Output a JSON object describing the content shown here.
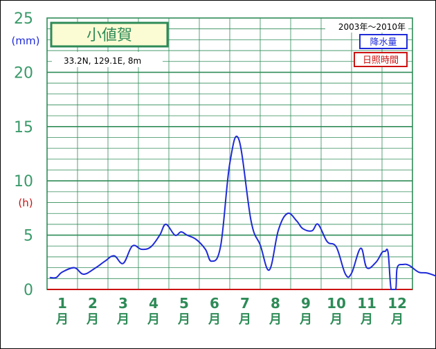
{
  "chart_data": {
    "type": "line",
    "title": "小値賀",
    "location": "33.2N,  129.1E,  8m",
    "period": "2003年〜2010年",
    "unit_rain": "(mm)",
    "unit_sun": "(h)",
    "legend": {
      "rain": "降水量",
      "sun": "日照時間"
    },
    "ylim": [
      0,
      25
    ],
    "yticks": [
      "0",
      "5",
      "10",
      "15",
      "20",
      "25"
    ],
    "months": [
      "1",
      "2",
      "3",
      "4",
      "5",
      "6",
      "7",
      "8",
      "9",
      "10",
      "11",
      "12"
    ],
    "month_suffix": "月",
    "colors": {
      "rain": "#1e2ad8",
      "sun": "#cc1111",
      "grid": "#2e8b57"
    },
    "series": [
      {
        "name": "降水量",
        "x": [
          0.1,
          0.3,
          0.5,
          0.9,
          1.2,
          1.6,
          1.9,
          2.2,
          2.5,
          2.8,
          3.1,
          3.4,
          3.7,
          3.9,
          4.2,
          4.4,
          4.6,
          4.9,
          5.2,
          5.4,
          5.7,
          6.0,
          6.3,
          6.7,
          7.0,
          7.3,
          7.6,
          7.9,
          8.2,
          8.4,
          8.7,
          8.9,
          9.2,
          9.5,
          9.8,
          10.0,
          10.3,
          10.5,
          10.8,
          11.0,
          11.1,
          11.2,
          11.3,
          11.45,
          11.5,
          11.7,
          11.9,
          12.2,
          12.5,
          12.9
        ],
        "y": [
          1.1,
          1.1,
          1.6,
          2.0,
          1.4,
          2.0,
          2.6,
          3.1,
          2.4,
          4.0,
          3.7,
          3.9,
          5.0,
          6.0,
          5.0,
          5.3,
          5.0,
          4.6,
          3.7,
          2.6,
          4.0,
          11.6,
          13.8,
          6.3,
          4.1,
          1.8,
          5.5,
          7.0,
          6.3,
          5.6,
          5.4,
          6.0,
          4.4,
          3.9,
          1.4,
          1.5,
          3.8,
          2.0,
          2.5,
          3.4,
          3.5,
          3.4,
          0.0,
          0.0,
          2.0,
          2.3,
          2.2,
          1.6,
          1.5,
          1.1
        ]
      }
    ]
  }
}
